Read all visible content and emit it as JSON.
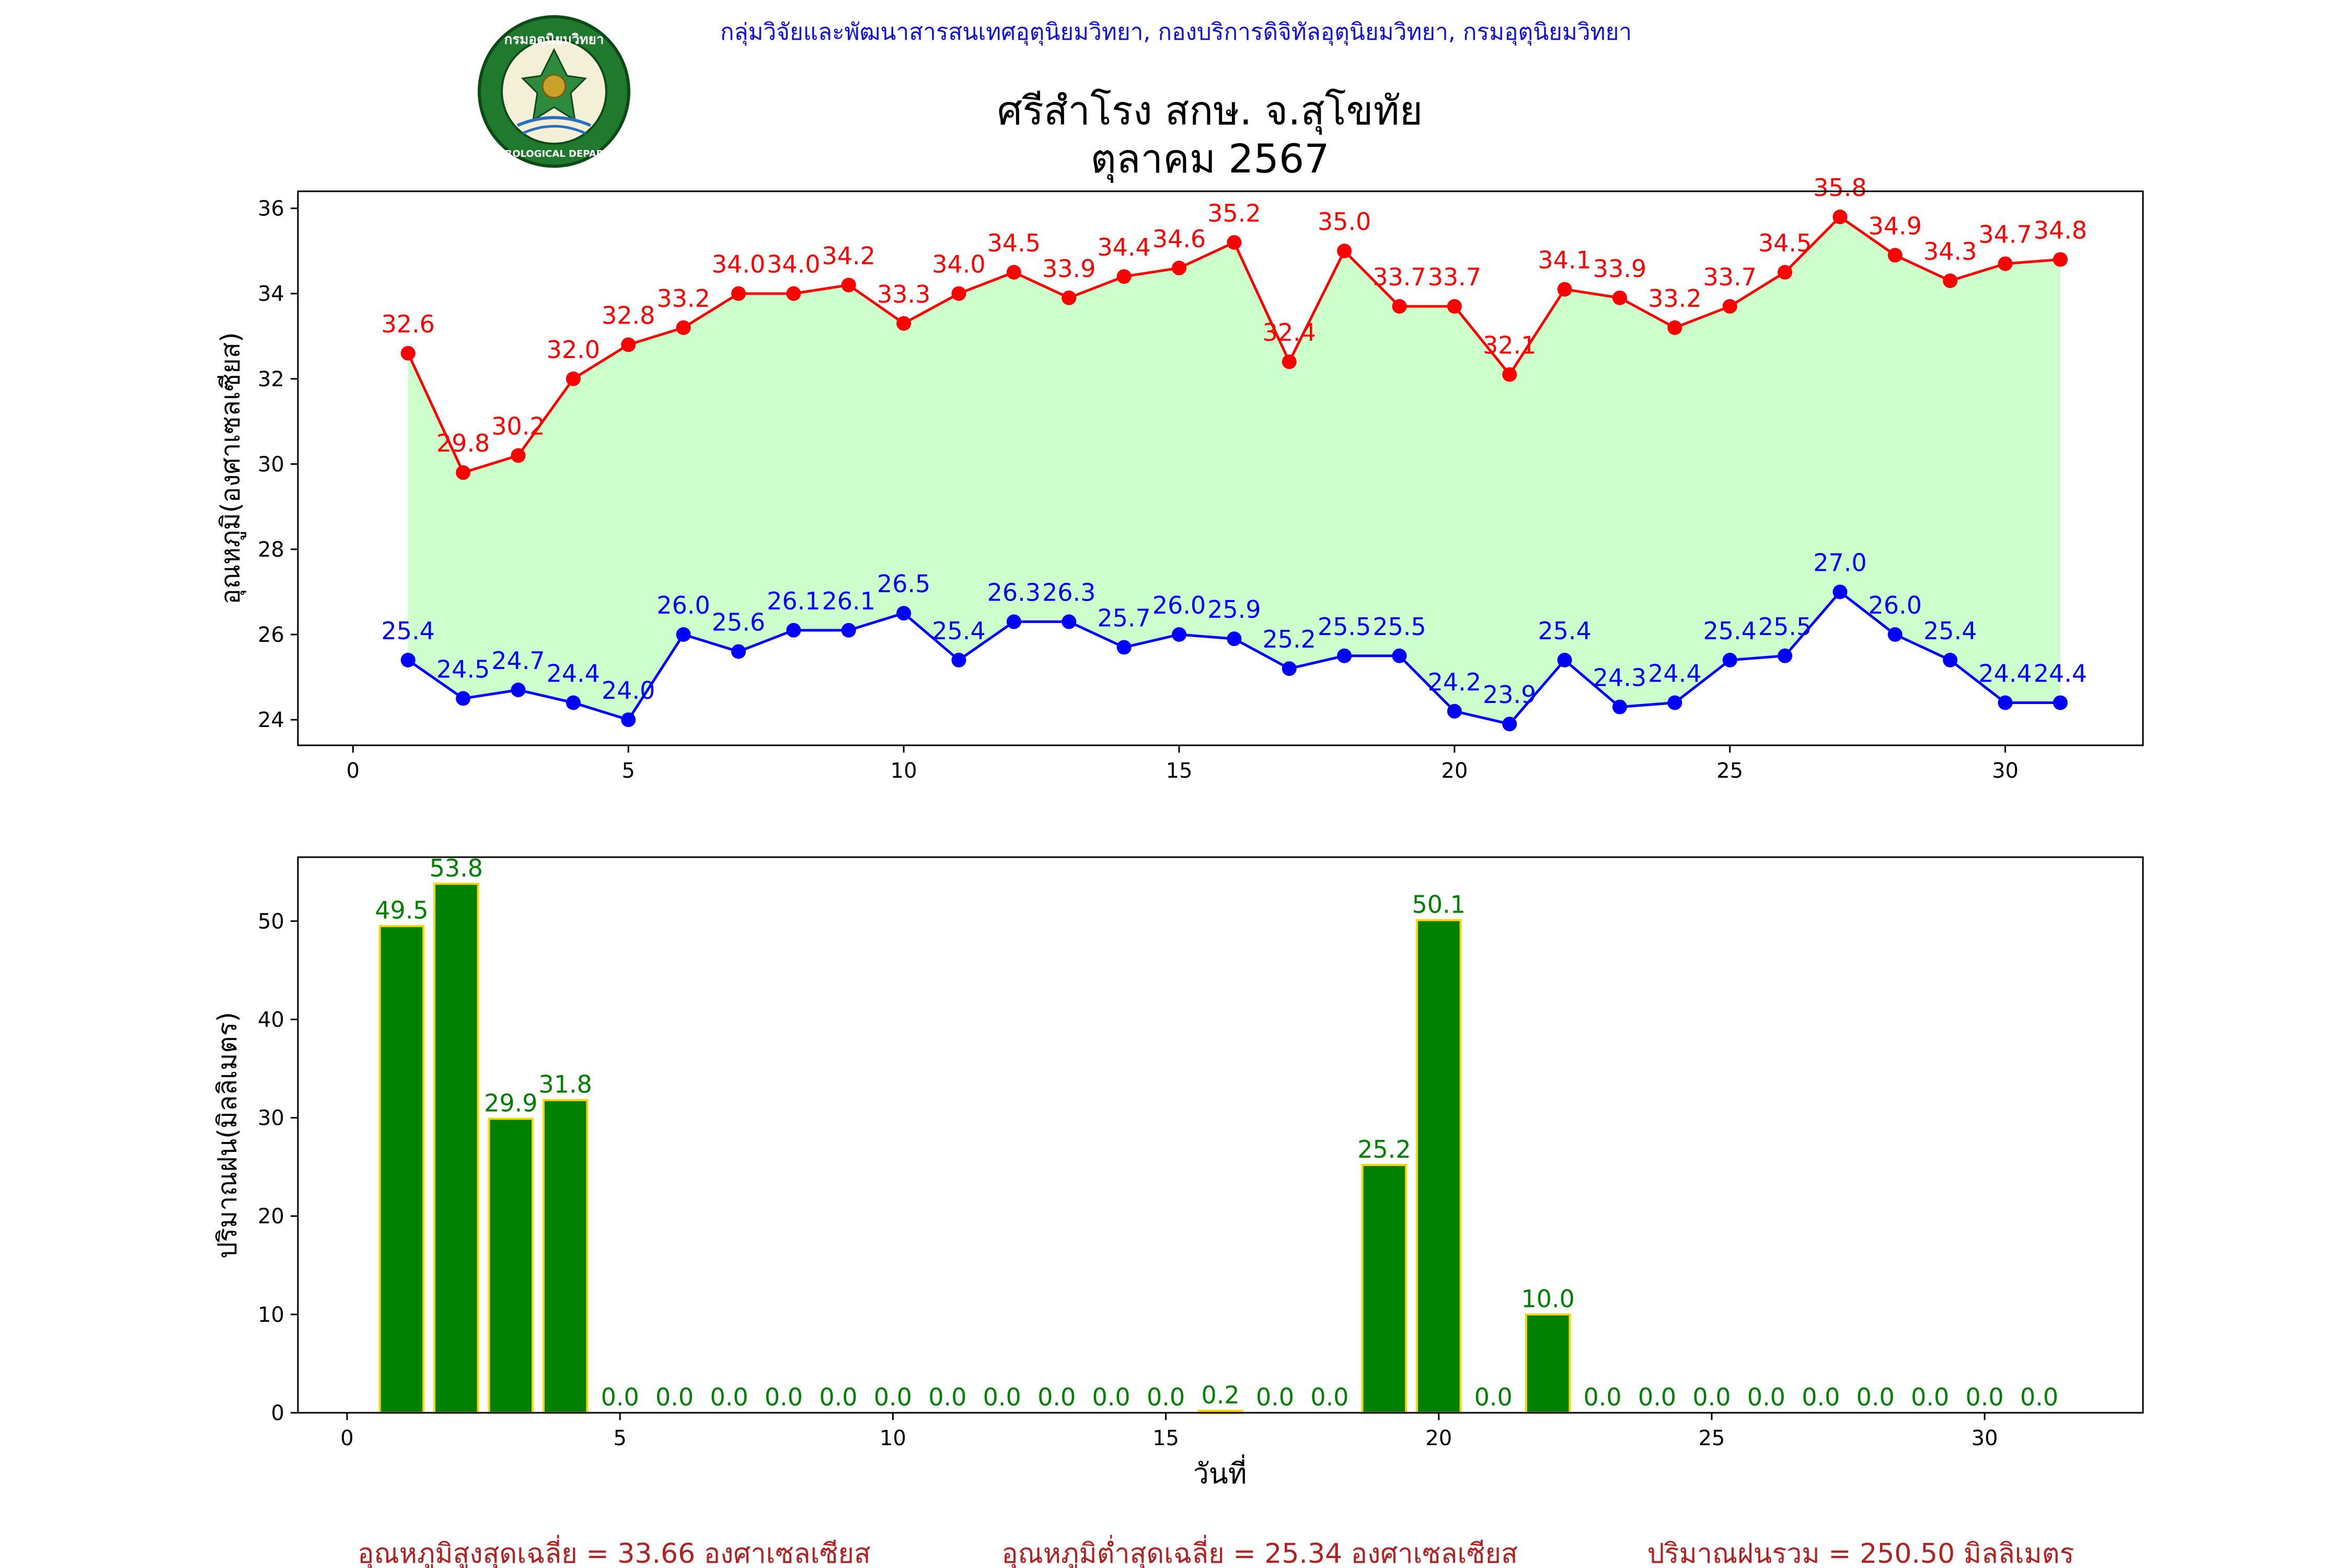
{
  "header": {
    "agency": "กลุ่มวิจัยและพัฒนาสารสนเทศอุตุนิยมวิทยา, กองบริการดิจิทัลอุตุนิยมวิทยา, กรมอุตุนิยมวิทยา",
    "station": "ศรีสำโรง สกษ. จ.สุโขทัย",
    "month": "ตุลาคม 2567"
  },
  "logo": {
    "icon": "tmd-seal-icon",
    "top_text": "กรมอุตุนิยมวิทยา",
    "bottom_text": "METEOROLOGICAL DEPARTMENT"
  },
  "colors": {
    "agency_text": "#1010e0",
    "tmax": "#ff0000",
    "tmin": "#0000ff",
    "fill": "#ccffcc",
    "rain_bar": "#008000",
    "rain_edge": "#ffd700",
    "summary": "#b22222"
  },
  "chart_data": [
    {
      "type": "line",
      "ylabel": "อุณหภูมิ(องศาเซลเซียส)",
      "xlabel": "",
      "xlim": [
        -1,
        32.5
      ],
      "ylim": [
        23.4,
        36.4
      ],
      "xticks": [
        0,
        5,
        10,
        15,
        20,
        25,
        30
      ],
      "yticks": [
        24,
        26,
        28,
        30,
        32,
        34,
        36
      ],
      "x": [
        1,
        2,
        3,
        4,
        5,
        6,
        7,
        8,
        9,
        10,
        11,
        12,
        13,
        14,
        15,
        16,
        17,
        18,
        19,
        20,
        21,
        22,
        23,
        24,
        25,
        26,
        27,
        28,
        29,
        30,
        31
      ],
      "fill_between": true,
      "series": [
        {
          "key": "tmax",
          "values": [
            32.6,
            29.8,
            30.2,
            32.0,
            32.8,
            33.2,
            34.0,
            34.0,
            34.2,
            33.3,
            34.0,
            34.5,
            33.9,
            34.4,
            34.6,
            35.2,
            32.4,
            35.0,
            33.7,
            33.7,
            32.1,
            34.1,
            33.9,
            33.2,
            33.7,
            34.5,
            35.8,
            34.9,
            34.3,
            34.7,
            34.8
          ],
          "labels": [
            "32.6",
            "29.8",
            "30.2",
            "32.0",
            "32.8",
            "33.2",
            "34.0",
            "34.0",
            "34.2",
            "33.3",
            "34.0",
            "34.5",
            "33.9",
            "34.4",
            "34.6",
            "35.2",
            "32.4",
            "35.0",
            "33.7",
            "33.7",
            "32.1",
            "34.1",
            "33.9",
            "33.2",
            "33.7",
            "34.5",
            "35.8",
            "34.9",
            "34.3",
            "34.7",
            "34.8"
          ]
        },
        {
          "key": "tmin",
          "values": [
            25.4,
            24.5,
            24.7,
            24.4,
            24.0,
            26.0,
            25.6,
            26.1,
            26.1,
            26.5,
            25.4,
            26.3,
            26.3,
            25.7,
            26.0,
            25.9,
            25.2,
            25.5,
            25.5,
            24.2,
            23.9,
            25.4,
            24.3,
            24.4,
            25.4,
            25.5,
            27.0,
            26.0,
            25.4,
            24.4,
            24.4
          ],
          "labels": [
            "25.4",
            "24.5",
            "24.7",
            "24.4",
            "24.0",
            "26.0",
            "25.6",
            "26.1",
            "26.1",
            "26.5",
            "25.4",
            "26.3",
            "26.3",
            "25.7",
            "26.0",
            "25.9",
            "25.2",
            "25.5",
            "25.5",
            "24.2",
            "23.9",
            "25.4",
            "24.3",
            "24.4",
            "25.4",
            "25.5",
            "27.0",
            "26.0",
            "25.4",
            "24.4",
            "24.4"
          ]
        }
      ]
    },
    {
      "type": "bar",
      "ylabel": "ปริมาณฝน(มิลลิเมตร)",
      "xlabel": "วันที่",
      "xlim": [
        -0.9,
        32.9
      ],
      "ylim": [
        0,
        56.5
      ],
      "xticks": [
        0,
        5,
        10,
        15,
        20,
        25,
        30
      ],
      "yticks": [
        0,
        10,
        20,
        30,
        40,
        50
      ],
      "x": [
        1,
        2,
        3,
        4,
        5,
        6,
        7,
        8,
        9,
        10,
        11,
        12,
        13,
        14,
        15,
        16,
        17,
        18,
        19,
        20,
        21,
        22,
        23,
        24,
        25,
        26,
        27,
        28,
        29,
        30,
        31
      ],
      "values": [
        49.5,
        53.8,
        29.9,
        31.8,
        0.0,
        0.0,
        0.0,
        0.0,
        0.0,
        0.0,
        0.0,
        0.0,
        0.0,
        0.0,
        0.0,
        0.2,
        0.0,
        0.0,
        25.2,
        50.1,
        0.0,
        10.0,
        0.0,
        0.0,
        0.0,
        0.0,
        0.0,
        0.0,
        0.0,
        0.0,
        0.0
      ],
      "labels": [
        "49.5",
        "53.8",
        "29.9",
        "31.8",
        "0.0",
        "0.0",
        "0.0",
        "0.0",
        "0.0",
        "0.0",
        "0.0",
        "0.0",
        "0.0",
        "0.0",
        "0.0",
        "0.2",
        "0.0",
        "0.0",
        "25.2",
        "50.1",
        "0.0",
        "10.0",
        "0.0",
        "0.0",
        "0.0",
        "0.0",
        "0.0",
        "0.0",
        "0.0",
        "0.0",
        "0.0"
      ]
    }
  ],
  "summary": {
    "tmax_avg": "อุณหภูมิสูงสุดเฉลี่ย = 33.66 องศาเซลเซียส",
    "tmin_avg": "อุณหภูมิต่ำสุดเฉลี่ย = 25.34 องศาเซลเซียส",
    "rain_total": "ปริมาณฝนรวม = 250.50 มิลลิเมตร"
  }
}
